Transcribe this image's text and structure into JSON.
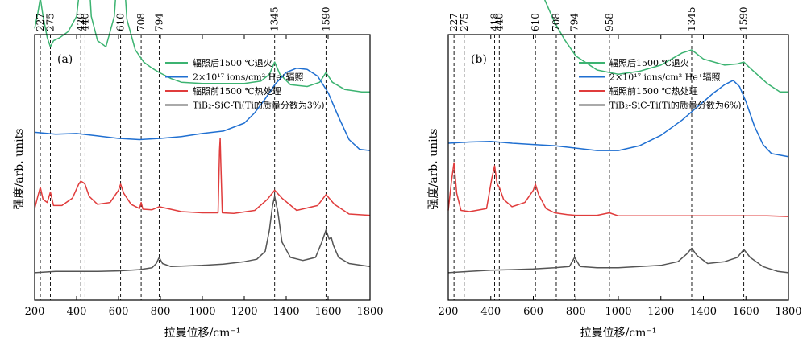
{
  "chart_data": [
    {
      "type": "line",
      "panel_label": "(a)",
      "xlabel": "拉曼位移/cm⁻¹",
      "ylabel": "强度/arb. units",
      "xlim": [
        200,
        1800
      ],
      "xticks": [
        200,
        400,
        600,
        800,
        1000,
        1200,
        1400,
        1600,
        1800
      ],
      "y_tick_labels": false,
      "grid": false,
      "legend_position": "top-right",
      "peak_labels": [
        "227",
        "275",
        "420",
        "440",
        "610",
        "708",
        "794",
        "1345",
        "1590"
      ],
      "peak_positions": [
        227,
        275,
        420,
        440,
        610,
        708,
        794,
        1345,
        1590
      ],
      "series": [
        {
          "name": "辐照后1500 ℃退火",
          "color": "#3cb371",
          "offset": 3.0,
          "x": [
            200,
            215,
            227,
            240,
            260,
            275,
            290,
            320,
            360,
            400,
            420,
            430,
            440,
            455,
            470,
            500,
            540,
            580,
            600,
            610,
            622,
            640,
            680,
            720,
            760,
            794,
            850,
            900,
            1000,
            1100,
            1200,
            1280,
            1320,
            1345,
            1370,
            1420,
            1500,
            1560,
            1590,
            1620,
            1680,
            1760,
            1800
          ],
          "y": [
            1.1,
            1.35,
            1.6,
            1.3,
            0.95,
            0.8,
            0.9,
            0.95,
            1.05,
            1.3,
            1.9,
            2.45,
            2.75,
            2.2,
            1.3,
            0.9,
            0.8,
            1.3,
            2.3,
            2.85,
            2.2,
            1.25,
            0.75,
            0.55,
            0.45,
            0.38,
            0.28,
            0.22,
            0.2,
            0.2,
            0.2,
            0.24,
            0.35,
            0.55,
            0.35,
            0.18,
            0.15,
            0.22,
            0.38,
            0.22,
            0.1,
            0.06,
            0.06
          ]
        },
        {
          "name": "2×10¹⁷ ions/cm² He⁺辐照",
          "color": "#1f6fd1",
          "offset": 2.0,
          "x": [
            200,
            300,
            400,
            500,
            600,
            700,
            800,
            900,
            1000,
            1100,
            1200,
            1250,
            1300,
            1350,
            1400,
            1450,
            1500,
            1550,
            1600,
            1650,
            1700,
            1750,
            1800
          ],
          "y": [
            0.4,
            0.37,
            0.38,
            0.34,
            0.3,
            0.28,
            0.3,
            0.33,
            0.38,
            0.42,
            0.55,
            0.72,
            0.95,
            1.2,
            1.38,
            1.45,
            1.43,
            1.32,
            1.05,
            0.65,
            0.28,
            0.12,
            0.1
          ]
        },
        {
          "name": "辐照前1500 ℃热处理",
          "color": "#e03c3c",
          "offset": 1.0,
          "x": [
            200,
            215,
            227,
            240,
            260,
            275,
            290,
            330,
            380,
            410,
            420,
            430,
            440,
            460,
            500,
            560,
            600,
            610,
            625,
            660,
            700,
            708,
            716,
            760,
            794,
            900,
            1000,
            1075,
            1082,
            1085,
            1088,
            1095,
            1150,
            1250,
            1310,
            1345,
            1380,
            1450,
            1550,
            1590,
            1630,
            1700,
            1800
          ],
          "y": [
            0.15,
            0.35,
            0.5,
            0.3,
            0.25,
            0.42,
            0.2,
            0.2,
            0.32,
            0.55,
            0.6,
            0.58,
            0.55,
            0.35,
            0.22,
            0.25,
            0.45,
            0.55,
            0.4,
            0.22,
            0.15,
            0.25,
            0.14,
            0.13,
            0.18,
            0.1,
            0.08,
            0.08,
            1.1,
            1.3,
            0.9,
            0.08,
            0.07,
            0.12,
            0.3,
            0.45,
            0.32,
            0.12,
            0.2,
            0.38,
            0.22,
            0.06,
            0.04
          ]
        },
        {
          "name": "TiB₂-SiC-Ti(Ti的质量分数为3%)",
          "color": "#555555",
          "offset": 0.0,
          "x": [
            200,
            300,
            400,
            500,
            600,
            700,
            760,
            780,
            794,
            810,
            850,
            1000,
            1100,
            1200,
            1260,
            1300,
            1320,
            1335,
            1345,
            1360,
            1380,
            1420,
            1480,
            1540,
            1570,
            1590,
            1605,
            1615,
            1625,
            1650,
            1700,
            1800
          ],
          "y": [
            0.1,
            0.12,
            0.12,
            0.12,
            0.13,
            0.15,
            0.18,
            0.25,
            0.35,
            0.25,
            0.2,
            0.22,
            0.24,
            0.28,
            0.32,
            0.45,
            0.8,
            1.2,
            1.35,
            1.1,
            0.6,
            0.35,
            0.3,
            0.35,
            0.6,
            0.8,
            0.65,
            0.68,
            0.55,
            0.35,
            0.25,
            0.2
          ]
        }
      ]
    },
    {
      "type": "line",
      "panel_label": "(b)",
      "xlabel": "拉曼位移/cm⁻¹",
      "ylabel": "强度/arb. units",
      "xlim": [
        200,
        1800
      ],
      "xticks": [
        200,
        400,
        600,
        800,
        1000,
        1200,
        1400,
        1600,
        1800
      ],
      "y_tick_labels": false,
      "grid": false,
      "legend_position": "top-right",
      "peak_labels": [
        "227",
        "275",
        "418",
        "440",
        "610",
        "708",
        "794",
        "958",
        "1345",
        "1590"
      ],
      "peak_positions": [
        227,
        275,
        418,
        440,
        610,
        708,
        794,
        958,
        1345,
        1590
      ],
      "series": [
        {
          "name": "辐照后1500 ℃退火",
          "color": "#3cb371",
          "offset": 3.0,
          "x": [
            200,
            220,
            250,
            280,
            320,
            360,
            400,
            418,
            430,
            450,
            480,
            520,
            560,
            600,
            620,
            650,
            700,
            750,
            800,
            900,
            1000,
            1100,
            1200,
            1300,
            1345,
            1400,
            1500,
            1560,
            1590,
            1620,
            1700,
            1760,
            1800
          ],
          "y": [
            1.9,
            2.2,
            2.5,
            2.4,
            2.25,
            2.5,
            2.85,
            2.9,
            2.7,
            2.3,
            1.9,
            1.7,
            1.85,
            2.05,
            1.95,
            1.6,
            1.2,
            0.9,
            0.65,
            0.42,
            0.35,
            0.4,
            0.5,
            0.7,
            0.75,
            0.6,
            0.5,
            0.52,
            0.55,
            0.45,
            0.2,
            0.06,
            0.06
          ]
        },
        {
          "name": "2×10¹⁷ ions/cm² He⁺辐照",
          "color": "#1f6fd1",
          "offset": 2.0,
          "x": [
            200,
            300,
            400,
            500,
            600,
            700,
            800,
            900,
            1000,
            1100,
            1200,
            1300,
            1400,
            1450,
            1500,
            1540,
            1570,
            1600,
            1640,
            1680,
            1720,
            1800
          ],
          "y": [
            0.22,
            0.24,
            0.25,
            0.22,
            0.2,
            0.18,
            0.14,
            0.1,
            0.1,
            0.18,
            0.35,
            0.6,
            0.9,
            1.05,
            1.18,
            1.25,
            1.15,
            0.9,
            0.5,
            0.2,
            0.05,
            0.0
          ]
        },
        {
          "name": "辐照前1500 ℃热处理",
          "color": "#e03c3c",
          "offset": 1.0,
          "x": [
            200,
            215,
            227,
            240,
            260,
            300,
            380,
            405,
            418,
            430,
            440,
            460,
            500,
            560,
            600,
            610,
            625,
            660,
            700,
            760,
            800,
            900,
            958,
            1000,
            1100,
            1300,
            1500,
            1700,
            1800
          ],
          "y": [
            0.12,
            0.6,
            0.9,
            0.4,
            0.12,
            0.1,
            0.15,
            0.65,
            0.85,
            0.55,
            0.5,
            0.3,
            0.18,
            0.25,
            0.45,
            0.55,
            0.38,
            0.15,
            0.08,
            0.05,
            0.04,
            0.04,
            0.08,
            0.03,
            0.03,
            0.03,
            0.03,
            0.03,
            0.02
          ]
        },
        {
          "name": "TiB₂-SiC-Ti(Ti的质量分数为6%)",
          "color": "#555555",
          "offset": 0.0,
          "x": [
            200,
            300,
            400,
            500,
            600,
            700,
            770,
            794,
            820,
            900,
            1000,
            1100,
            1200,
            1280,
            1320,
            1345,
            1370,
            1420,
            1500,
            1560,
            1590,
            1620,
            1680,
            1750,
            1800
          ],
          "y": [
            0.1,
            0.12,
            0.14,
            0.15,
            0.16,
            0.18,
            0.2,
            0.35,
            0.2,
            0.18,
            0.18,
            0.2,
            0.22,
            0.28,
            0.4,
            0.5,
            0.38,
            0.25,
            0.28,
            0.35,
            0.48,
            0.35,
            0.2,
            0.12,
            0.1
          ]
        }
      ]
    }
  ]
}
